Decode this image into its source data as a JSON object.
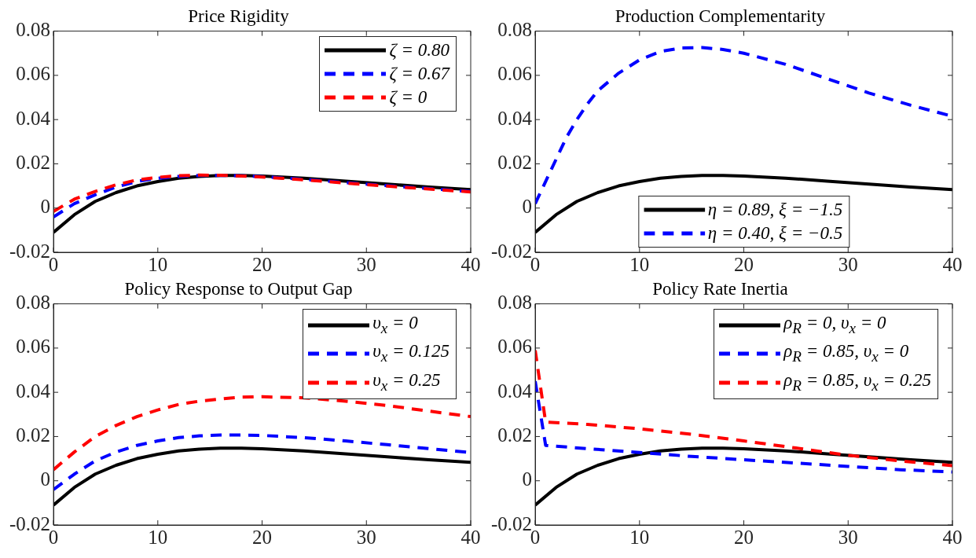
{
  "chart_data": [
    {
      "type": "line",
      "title": "Price Rigidity",
      "xlim": [
        0,
        40
      ],
      "xticks": [
        0,
        10,
        20,
        30,
        40
      ],
      "ylim": [
        -0.02,
        0.08
      ],
      "yticks": [
        -0.02,
        0,
        0.02,
        0.04,
        0.06,
        0.08
      ],
      "grid": false,
      "legend": "top right",
      "series": [
        {
          "name": "ζ = 0.80",
          "color": "#000000",
          "line_style": "solid",
          "x": [
            0,
            2,
            4,
            6,
            8,
            10,
            12,
            14,
            16,
            18,
            20,
            24,
            28,
            32,
            36,
            40
          ],
          "values": [
            -0.011,
            -0.003,
            0.003,
            0.007,
            0.01,
            0.012,
            0.0135,
            0.0143,
            0.0147,
            0.0147,
            0.0145,
            0.0135,
            0.0122,
            0.0108,
            0.0095,
            0.0083
          ]
        },
        {
          "name": "ζ = 0.67",
          "color": "#0000ff",
          "line_style": "dashed",
          "x": [
            0,
            2,
            4,
            6,
            8,
            10,
            12,
            14,
            16,
            18,
            20,
            24,
            28,
            32,
            36,
            40
          ],
          "values": [
            -0.004,
            0.002,
            0.006,
            0.0095,
            0.012,
            0.0135,
            0.0143,
            0.0147,
            0.0148,
            0.0146,
            0.0142,
            0.013,
            0.0115,
            0.0101,
            0.0088,
            0.0075
          ]
        },
        {
          "name": "ζ = 0",
          "color": "#ff0000",
          "line_style": "dashed",
          "x": [
            0,
            2,
            4,
            6,
            8,
            10,
            12,
            14,
            16,
            18,
            20,
            24,
            28,
            32,
            36,
            40
          ],
          "values": [
            -0.0015,
            0.004,
            0.0075,
            0.0105,
            0.0127,
            0.0139,
            0.0146,
            0.0149,
            0.0148,
            0.0145,
            0.014,
            0.0128,
            0.0113,
            0.0099,
            0.0086,
            0.0073
          ]
        }
      ]
    },
    {
      "type": "line",
      "title": "Production Complementarity",
      "xlim": [
        0,
        40
      ],
      "xticks": [
        0,
        10,
        20,
        30,
        40
      ],
      "ylim": [
        -0.02,
        0.08
      ],
      "yticks": [
        -0.02,
        0,
        0.02,
        0.04,
        0.06,
        0.08
      ],
      "grid": false,
      "legend": "bottom",
      "series": [
        {
          "name": "η = 0.89, ξ = −1.5",
          "color": "#000000",
          "line_style": "solid",
          "x": [
            0,
            2,
            4,
            6,
            8,
            10,
            12,
            14,
            16,
            18,
            20,
            24,
            28,
            32,
            36,
            40
          ],
          "values": [
            -0.011,
            -0.003,
            0.003,
            0.007,
            0.01,
            0.012,
            0.0135,
            0.0143,
            0.0147,
            0.0147,
            0.0145,
            0.0135,
            0.0122,
            0.0108,
            0.0095,
            0.0083
          ]
        },
        {
          "name": "η = 0.40, ξ = −0.5",
          "color": "#0000ff",
          "line_style": "dashed",
          "x": [
            0,
            1,
            2,
            3,
            4,
            5,
            6,
            8,
            10,
            12,
            14,
            16,
            18,
            20,
            24,
            28,
            32,
            36,
            40
          ],
          "values": [
            0.002,
            0.012,
            0.022,
            0.032,
            0.04,
            0.047,
            0.053,
            0.061,
            0.067,
            0.0708,
            0.0724,
            0.0726,
            0.0717,
            0.07,
            0.065,
            0.0585,
            0.052,
            0.0465,
            0.0415
          ]
        }
      ]
    },
    {
      "type": "line",
      "title": "Policy Response to Output Gap",
      "xlim": [
        0,
        40
      ],
      "xticks": [
        0,
        10,
        20,
        30,
        40
      ],
      "ylim": [
        -0.02,
        0.08
      ],
      "yticks": [
        -0.02,
        0,
        0.02,
        0.04,
        0.06,
        0.08
      ],
      "grid": false,
      "legend": "top right",
      "series": [
        {
          "name": "υ$_{x}$ = 0",
          "color": "#000000",
          "line_style": "solid",
          "x": [
            0,
            2,
            4,
            6,
            8,
            10,
            12,
            14,
            16,
            18,
            20,
            24,
            28,
            32,
            36,
            40
          ],
          "values": [
            -0.011,
            -0.003,
            0.003,
            0.007,
            0.01,
            0.012,
            0.0135,
            0.0143,
            0.0147,
            0.0147,
            0.0145,
            0.0135,
            0.0122,
            0.0108,
            0.0095,
            0.0083
          ]
        },
        {
          "name": "υ$_{x}$ = 0.125",
          "color": "#0000ff",
          "line_style": "dashed",
          "x": [
            0,
            2,
            4,
            6,
            8,
            10,
            12,
            14,
            16,
            18,
            20,
            24,
            28,
            32,
            36,
            40
          ],
          "values": [
            -0.004,
            0.003,
            0.009,
            0.013,
            0.016,
            0.018,
            0.0195,
            0.0203,
            0.0207,
            0.0207,
            0.0205,
            0.0195,
            0.018,
            0.0163,
            0.0145,
            0.0128
          ]
        },
        {
          "name": "υ$_{x}$ = 0.25",
          "color": "#ff0000",
          "line_style": "dashed",
          "x": [
            0,
            2,
            4,
            6,
            8,
            10,
            12,
            14,
            16,
            18,
            20,
            24,
            28,
            32,
            36,
            40
          ],
          "values": [
            0.005,
            0.013,
            0.02,
            0.025,
            0.029,
            0.032,
            0.0345,
            0.036,
            0.037,
            0.0378,
            0.038,
            0.0375,
            0.036,
            0.034,
            0.0315,
            0.029
          ]
        }
      ]
    },
    {
      "type": "line",
      "title": "Policy Rate Inertia",
      "xlim": [
        0,
        40
      ],
      "xticks": [
        0,
        10,
        20,
        30,
        40
      ],
      "ylim": [
        -0.02,
        0.08
      ],
      "yticks": [
        -0.02,
        0,
        0.02,
        0.04,
        0.06,
        0.08
      ],
      "grid": false,
      "legend": "top right",
      "series": [
        {
          "name": "ρ$_{R}$ = 0, υ$_{x}$ = 0",
          "color": "#000000",
          "line_style": "solid",
          "x": [
            0,
            2,
            4,
            6,
            8,
            10,
            12,
            14,
            16,
            18,
            20,
            24,
            28,
            32,
            36,
            40
          ],
          "values": [
            -0.011,
            -0.003,
            0.003,
            0.007,
            0.01,
            0.012,
            0.0135,
            0.0143,
            0.0147,
            0.0147,
            0.0145,
            0.0135,
            0.0122,
            0.0108,
            0.0095,
            0.0083
          ]
        },
        {
          "name": "ρ$_{R}$ = 0.85, υ$_{x}$ = 0",
          "color": "#0000ff",
          "line_style": "dashed",
          "x": [
            0,
            1,
            5,
            10,
            15,
            20,
            25,
            30,
            35,
            40
          ],
          "values": [
            0.045,
            0.016,
            0.0145,
            0.0128,
            0.011,
            0.0095,
            0.008,
            0.0065,
            0.005,
            0.004
          ]
        },
        {
          "name": "ρ$_{R}$ = 0.85, υ$_{x}$ = 0.25",
          "color": "#ff0000",
          "line_style": "dashed",
          "x": [
            0,
            1,
            5,
            10,
            15,
            20,
            25,
            30,
            35,
            40
          ],
          "values": [
            0.059,
            0.0265,
            0.0255,
            0.0235,
            0.021,
            0.018,
            0.0148,
            0.0115,
            0.009,
            0.0068
          ]
        }
      ]
    }
  ]
}
